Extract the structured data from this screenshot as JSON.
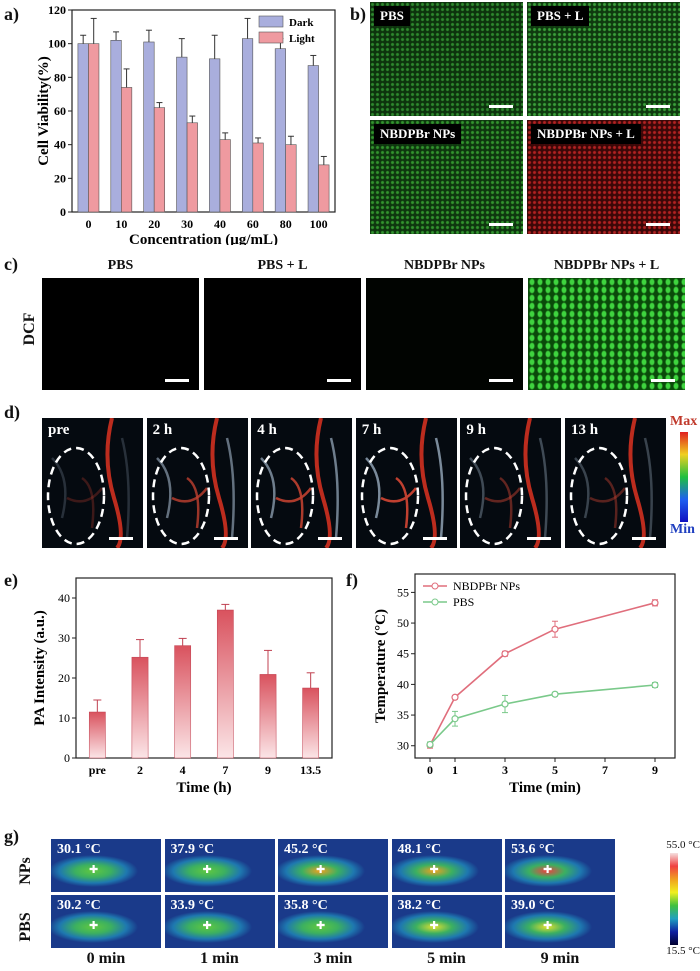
{
  "panels": {
    "a": "a)",
    "b": "b)",
    "c": "c)",
    "d": "d)",
    "e": "e)",
    "f": "f)",
    "g": "g)"
  },
  "chart_data": [
    {
      "type": "bar",
      "categories": [
        "0",
        "10",
        "20",
        "30",
        "40",
        "60",
        "80",
        "100"
      ],
      "series": [
        {
          "name": "Dark",
          "values": [
            100,
            102,
            101,
            92,
            91,
            103,
            97,
            87
          ],
          "errors": [
            5,
            5,
            7,
            11,
            14,
            12,
            6,
            6
          ],
          "color": "#a9aedd"
        },
        {
          "name": "Light",
          "values": [
            100,
            74,
            62,
            53,
            43,
            41,
            40,
            28
          ],
          "errors": [
            15,
            11,
            3,
            4,
            4,
            3,
            5,
            5
          ],
          "color": "#ef9aa0"
        }
      ],
      "xlabel": "Concentration (μg/mL)",
      "ylabel": "Cell Viability(%)",
      "ylim": [
        0,
        120
      ],
      "yticks": [
        "0",
        "20",
        "40",
        "60",
        "80",
        "100",
        "120"
      ],
      "legend": "top-right"
    },
    {
      "type": "bar",
      "categories": [
        "pre",
        "2",
        "4",
        "7",
        "9",
        "13.5"
      ],
      "values": [
        11.5,
        25.2,
        28.1,
        37.0,
        20.9,
        17.5
      ],
      "errors": [
        3.0,
        4.4,
        1.8,
        1.4,
        6.0,
        3.8
      ],
      "xlabel": "Time (h)",
      "ylabel": "PA Intensity (a.u.)",
      "ylim": [
        0,
        45
      ],
      "yticks": [
        "0",
        "10",
        "20",
        "30",
        "40"
      ]
    },
    {
      "type": "line",
      "x": [
        0,
        1,
        3,
        5,
        9
      ],
      "series": [
        {
          "name": "NBDPBr NPs",
          "values": [
            30.1,
            37.9,
            45.0,
            49.0,
            53.3
          ],
          "errors": [
            0.5,
            0.3,
            0.4,
            1.3,
            0.5
          ],
          "color": "#e06e7c"
        },
        {
          "name": "PBS",
          "values": [
            30.2,
            34.4,
            36.8,
            38.4,
            39.9
          ],
          "errors": [
            0.4,
            1.2,
            1.4,
            0.3,
            0.4
          ],
          "color": "#7ac98a"
        }
      ],
      "xlabel": "Time (min)",
      "ylabel": "Temperature (°C)",
      "xticks": [
        "0",
        "1",
        "3",
        "5",
        "7",
        "9"
      ],
      "yticks": [
        "30",
        "35",
        "40",
        "45",
        "50",
        "55"
      ],
      "ylim": [
        28,
        58
      ],
      "legend": "top-left"
    }
  ],
  "b_labels": [
    "PBS",
    "PBS + L",
    "NBDPBr NPs",
    "NBDPBr NPs + L"
  ],
  "c_titles": [
    "PBS",
    "PBS + L",
    "NBDPBr NPs",
    "NBDPBr NPs + L"
  ],
  "c_row": "DCF",
  "d_labels": [
    "pre",
    "2 h",
    "4 h",
    "7 h",
    "9 h",
    "13 h"
  ],
  "d_scale": {
    "max": "Max",
    "min": "Min"
  },
  "g_rows": [
    "NPs",
    "PBS"
  ],
  "g_temps": [
    [
      "30.1 °C",
      "37.9 °C",
      "45.2 °C",
      "48.1 °C",
      "53.6 °C"
    ],
    [
      "30.2 °C",
      "33.9 °C",
      "35.8 °C",
      "38.2 °C",
      "39.0 °C"
    ]
  ],
  "g_times": [
    "0 min",
    "1 min",
    "3 min",
    "5 min",
    "9 min"
  ],
  "g_scale": {
    "max": "55.0 °C",
    "min": "15.5 °C"
  }
}
